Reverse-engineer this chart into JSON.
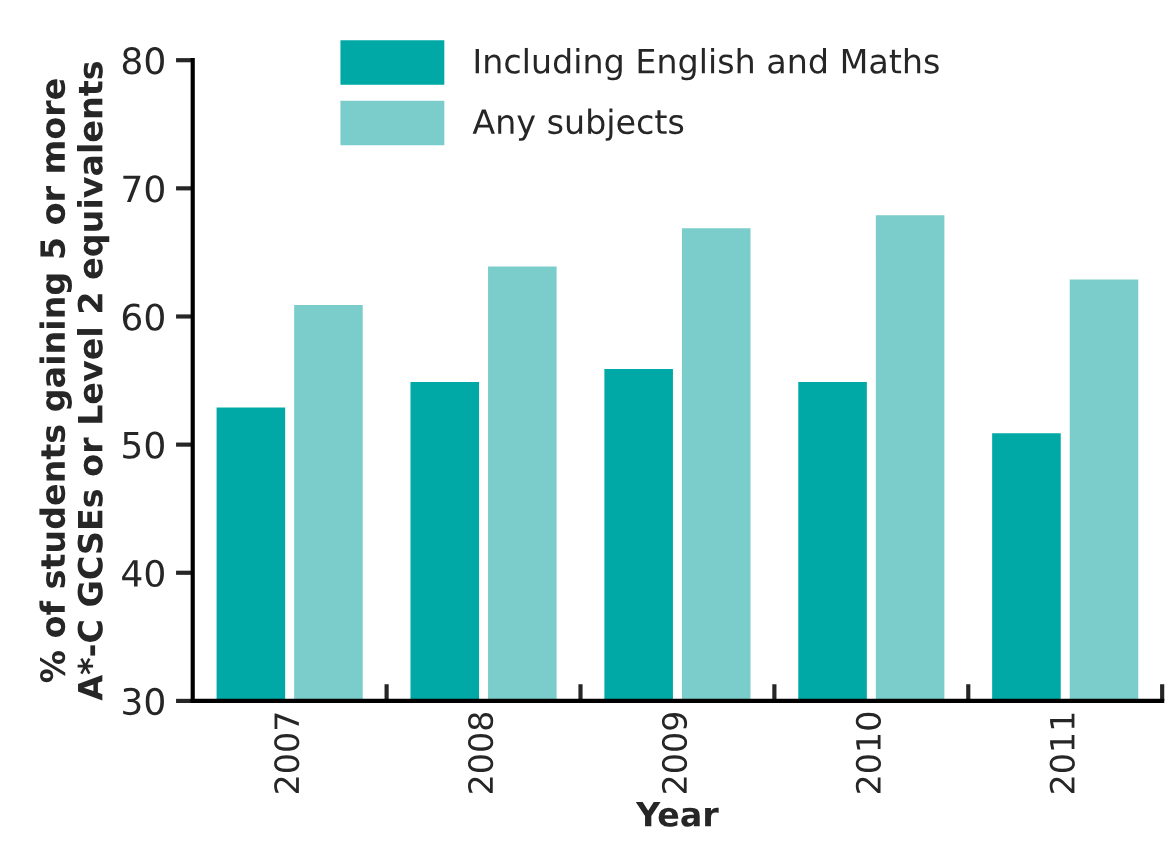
{
  "chart_data": {
    "type": "bar",
    "xlabel": "Year",
    "ylabel": "% of students gaining 5 or more\nA*-C GCSEs or Level 2 equivalents",
    "categories": [
      "2007",
      "2008",
      "2009",
      "2010",
      "2011"
    ],
    "series": [
      {
        "name": "Including English and Maths",
        "color": "#00a9a5",
        "values": [
          53,
          55,
          56,
          55,
          51
        ]
      },
      {
        "name": "Any subjects",
        "color": "#7acdca",
        "values": [
          61,
          64,
          67,
          68,
          63
        ]
      }
    ],
    "ylim": [
      30,
      80
    ],
    "yticks": [
      30,
      40,
      50,
      60,
      70,
      80
    ],
    "grid": false,
    "legend": "top left"
  }
}
